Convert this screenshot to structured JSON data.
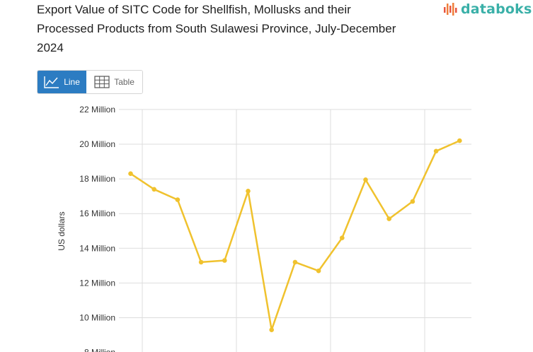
{
  "header": {
    "title": "Export Value of SITC Code for Shellfish, Mollusks and their Processed Products from South Sulawesi Province, July-December 2024",
    "logo_text": "databoks"
  },
  "toggle": {
    "line_label": "Line",
    "table_label": "Table",
    "selected": "line"
  },
  "colors": {
    "series": "#f0c22e",
    "active_toggle": "#2c7cc2",
    "logo": "#3ab0a8",
    "grid": "#dddddd"
  },
  "chart_data": {
    "type": "line",
    "title": "Export Value of SITC Code for Shellfish, Mollusks and their Processed Products from South Sulawesi Province, July-December 2024",
    "ylabel": "US dollars",
    "xlabel": "",
    "ylim": [
      8000000,
      22000000
    ],
    "yticks": [
      8000000,
      10000000,
      12000000,
      14000000,
      16000000,
      18000000,
      20000000,
      22000000
    ],
    "ytick_labels": [
      "8 Million",
      "10 Million",
      "12 Million",
      "14 Million",
      "16 Million",
      "18 Million",
      "20 Million",
      "22 Million"
    ],
    "grid": true,
    "series": [
      {
        "values": [
          18300000,
          17400000,
          16800000,
          13200000,
          13300000,
          17300000,
          9300000,
          13200000,
          12700000,
          14600000,
          17950000,
          15700000,
          16700000,
          19600000,
          20200000
        ]
      }
    ]
  }
}
